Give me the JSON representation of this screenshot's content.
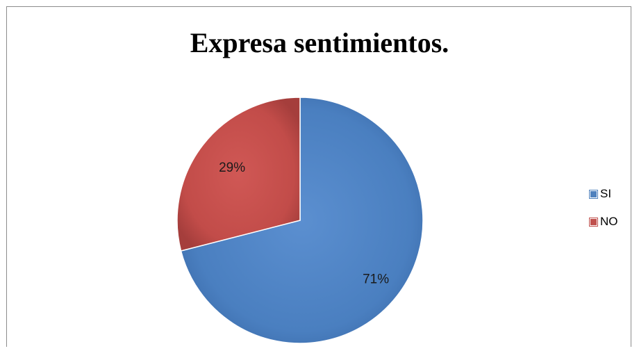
{
  "chart_data": {
    "type": "pie",
    "title": "Expresa sentimientos.",
    "categories": [
      "SI",
      "NO"
    ],
    "values": [
      71,
      29
    ],
    "data_labels": [
      "71%",
      "29%"
    ],
    "colors": [
      "#4f81bd",
      "#c0504d"
    ],
    "legend_position": "right"
  }
}
